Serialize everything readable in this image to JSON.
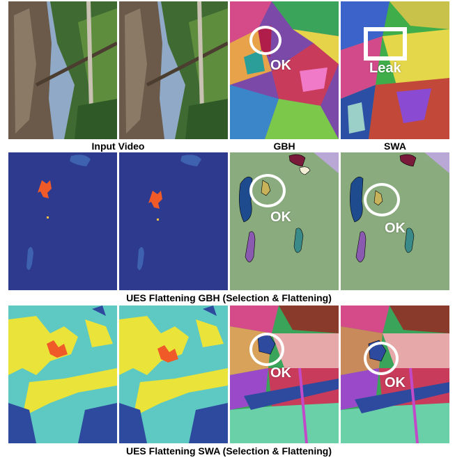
{
  "captions": {
    "row1_input": "Input Video",
    "row1_gbh": "GBH",
    "row1_swa": "SWA",
    "row2": "UES Flattening GBH (Selection & Flattening)",
    "row3": "UES Flattening SWA (Selection & Flattening)"
  },
  "annotations": {
    "r1_gbh": "OK",
    "r1_swa": "Leak",
    "r2_a": "OK",
    "r2_b": "OK",
    "r3_a": "OK",
    "r3_b": "OK"
  },
  "colors": {
    "navy": "#2e3a8e",
    "sage": "#8aab7d",
    "teal": "#5ec8c2",
    "yellow": "#e9e33a",
    "orange": "#f05a28"
  }
}
